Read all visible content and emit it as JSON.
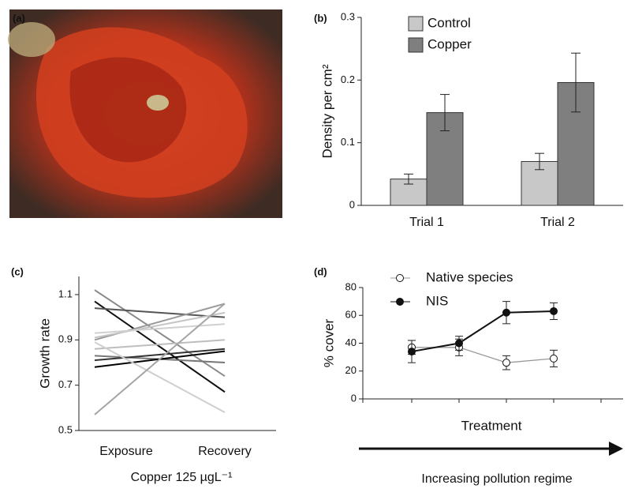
{
  "photo": {
    "panel_label": "(a)"
  },
  "chart_data": [
    {
      "type": "bar",
      "panel_label": "(b)",
      "ylabel": "Density per cm²",
      "categories": [
        "Trial 1",
        "Trial 2"
      ],
      "series": [
        {
          "name": "Control",
          "color": "#c8c8c8",
          "values": [
            0.042,
            0.07
          ],
          "errors": [
            0.008,
            0.013
          ]
        },
        {
          "name": "Copper",
          "color": "#7f7f7f",
          "values": [
            0.148,
            0.196
          ],
          "errors": [
            0.029,
            0.047
          ]
        }
      ],
      "ylim": [
        0,
        0.3
      ],
      "yticks": [
        0,
        0.1,
        0.2,
        0.3
      ],
      "legend": "top-left"
    },
    {
      "type": "line",
      "panel_label": "(c)",
      "ylabel": "Growth rate",
      "xlabel": "Copper 125 µgL⁻¹",
      "categories": [
        "Exposure",
        "Recovery"
      ],
      "series": [
        {
          "color": "#8a8a8a",
          "values": [
            1.12,
            0.74
          ]
        },
        {
          "color": "#111111",
          "values": [
            1.07,
            0.67
          ]
        },
        {
          "color": "#555555",
          "values": [
            1.04,
            1.0
          ]
        },
        {
          "color": "#9a9a9a",
          "values": [
            0.9,
            1.06
          ]
        },
        {
          "color": "#c4c4c4",
          "values": [
            0.91,
            1.02
          ]
        },
        {
          "color": "#d0d0d0",
          "values": [
            0.93,
            0.97
          ]
        },
        {
          "color": "#bdbdbd",
          "values": [
            0.86,
            0.9
          ]
        },
        {
          "color": "#777777",
          "values": [
            0.83,
            0.8
          ]
        },
        {
          "color": "#333333",
          "values": [
            0.81,
            0.86
          ]
        },
        {
          "color": "#000000",
          "values": [
            0.78,
            0.85
          ]
        },
        {
          "color": "#cfcfcf",
          "values": [
            0.89,
            0.58
          ]
        },
        {
          "color": "#a5a5a5",
          "values": [
            0.57,
            1.06
          ]
        }
      ],
      "ylim": [
        0.5,
        1.18
      ],
      "yticks": [
        0.5,
        0.7,
        0.9,
        1.1
      ]
    },
    {
      "type": "errorline",
      "panel_label": "(d)",
      "ylabel": "% cover",
      "xlabel": "Treatment",
      "annotation": "Increasing pollution regime",
      "categories": [
        null,
        null,
        null,
        null
      ],
      "series": [
        {
          "name": "Native species",
          "color": "#ffffff",
          "values": [
            37,
            37,
            26,
            29
          ],
          "errors": [
            5,
            6,
            5,
            6
          ]
        },
        {
          "name": "NIS",
          "color": "#111111",
          "values": [
            34,
            40,
            62,
            63
          ],
          "errors": [
            8,
            5,
            8,
            6
          ]
        }
      ],
      "ylim": [
        0,
        80
      ],
      "yticks": [
        0,
        20,
        40,
        60,
        80
      ]
    }
  ]
}
